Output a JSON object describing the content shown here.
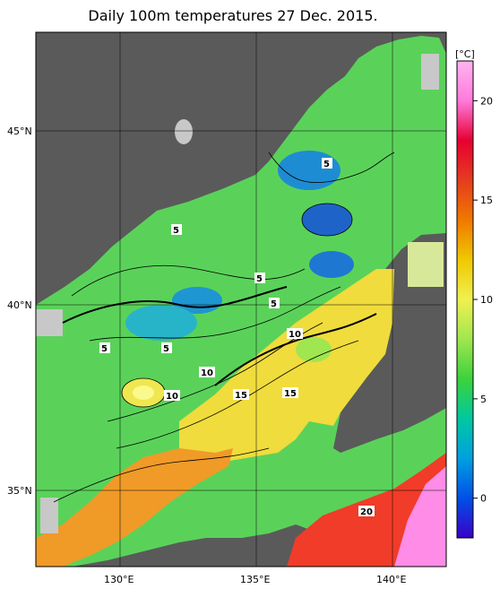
{
  "title": "Daily 100m temperatures 27 Dec. 2015.",
  "lat_labels": [
    "45°N",
    "40°N",
    "35°N"
  ],
  "lon_labels": [
    "130°E",
    "135°E",
    "140°E"
  ],
  "colorbar": {
    "unit": "[°C]",
    "ticks": [
      "0",
      "5",
      "10",
      "15",
      "20"
    ],
    "stops": [
      "#3a00c8",
      "#0050e6",
      "#00a0e0",
      "#00c8a0",
      "#3cd23c",
      "#a0e650",
      "#f0f050",
      "#f0c800",
      "#f07800",
      "#e63c1e",
      "#e60032",
      "#ff7adc",
      "#ffb4f0"
    ]
  },
  "contour_labels": [
    "5",
    "5",
    "5",
    "5",
    "5",
    "5",
    "5",
    "10",
    "10",
    "10",
    "15",
    "15",
    "20"
  ],
  "colors": {
    "land": "#5a5a5a",
    "nodata": "#c8c8c8",
    "cold": "#1e64c8",
    "mid": "#5ad25a",
    "warm": "#f0dc3c",
    "hot": "#f07828"
  }
}
